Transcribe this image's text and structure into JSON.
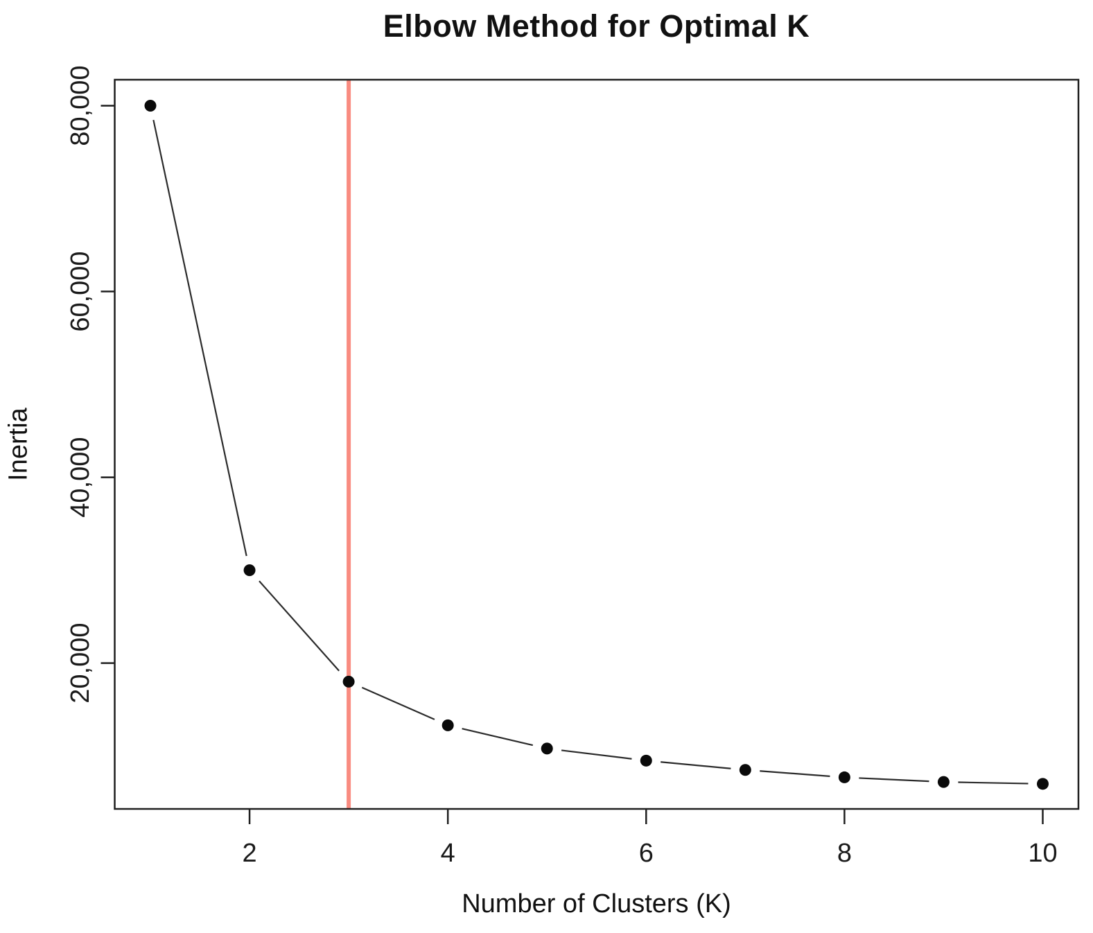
{
  "chart_data": {
    "type": "line",
    "title": "Elbow Method for Optimal K",
    "xlabel": "Number of Clusters (K)",
    "ylabel": "Inertia",
    "x": [
      1,
      2,
      3,
      4,
      5,
      6,
      7,
      8,
      9,
      10
    ],
    "series": [
      {
        "name": "Inertia",
        "values": [
          80000,
          30000,
          18000,
          13300,
          10800,
          9500,
          8500,
          7700,
          7200,
          7000
        ]
      }
    ],
    "x_ticks": [
      {
        "value": 2,
        "label": "2"
      },
      {
        "value": 4,
        "label": "4"
      },
      {
        "value": 6,
        "label": "6"
      },
      {
        "value": 8,
        "label": "8"
      },
      {
        "value": 10,
        "label": "10"
      }
    ],
    "y_ticks": [
      {
        "value": 20000,
        "label": "20,000"
      },
      {
        "value": 40000,
        "label": "40,000"
      },
      {
        "value": 60000,
        "label": "60,000"
      },
      {
        "value": 80000,
        "label": "80,000"
      }
    ],
    "xlim": [
      0.64,
      10.36
    ],
    "ylim": [
      4300,
      82800
    ],
    "grid": false,
    "legend_position": "none",
    "marker": "filled-circle",
    "line_type": "points-and-segments",
    "vline": {
      "x": 3,
      "label": "optimal-k-marker"
    },
    "colors": {
      "background": "#ffffff",
      "points": "#0a0a0a",
      "segments": "#2b2b2b",
      "axis": "#1f1f1f",
      "vline": "#f98b80",
      "text": "#111111"
    }
  }
}
